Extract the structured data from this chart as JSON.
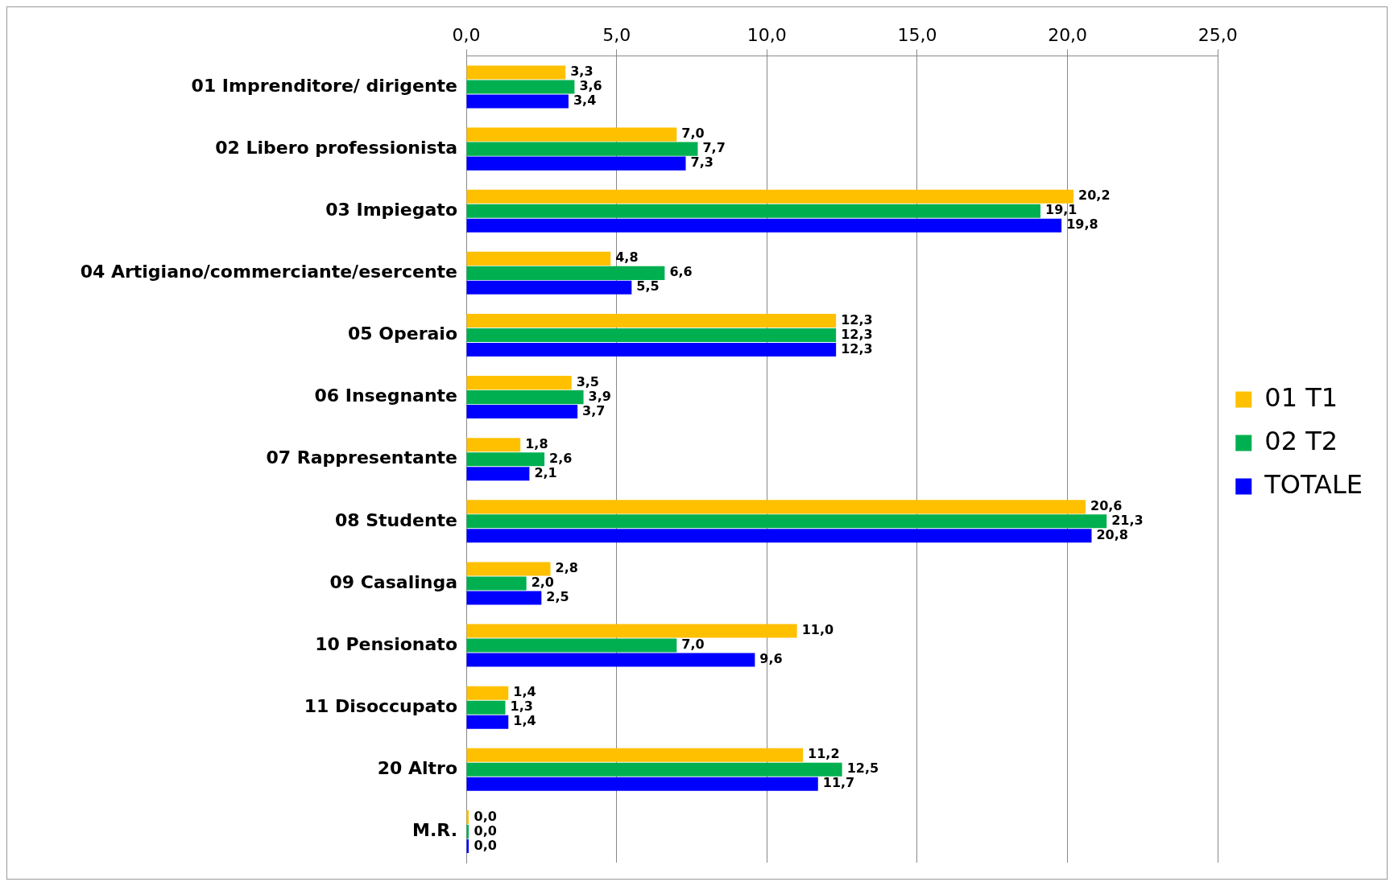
{
  "chart_data": {
    "type": "bar",
    "orientation": "horizontal",
    "categories": [
      "01 Imprenditore/ dirigente",
      "02 Libero professionista",
      "03 Impiegato",
      "04 Artigiano/commerciante/esercente",
      "05 Operaio",
      "06 Insegnante",
      "07 Rappresentante",
      "08 Studente",
      "09 Casalinga",
      "10 Pensionato",
      "11 Disoccupato",
      "20 Altro",
      "M.R."
    ],
    "series": [
      {
        "name": "01 T1",
        "color": "#ffc000",
        "values": [
          3.3,
          7.0,
          20.2,
          4.8,
          12.3,
          3.5,
          1.8,
          20.6,
          2.8,
          11.0,
          1.4,
          11.2,
          0.0
        ],
        "value_labels": [
          "3,3",
          "7,0",
          "20,2",
          "4,8",
          "12,3",
          "3,5",
          "1,8",
          "20,6",
          "2,8",
          "11,0",
          "1,4",
          "11,2",
          "0,0"
        ]
      },
      {
        "name": "02 T2",
        "color": "#00b050",
        "values": [
          3.6,
          7.7,
          19.1,
          6.6,
          12.3,
          3.9,
          2.6,
          21.3,
          2.0,
          7.0,
          1.3,
          12.5,
          0.0
        ],
        "value_labels": [
          "3,6",
          "7,7",
          "19,1",
          "6,6",
          "12,3",
          "3,9",
          "2,6",
          "21,3",
          "2,0",
          "7,0",
          "1,3",
          "12,5",
          "0,0"
        ]
      },
      {
        "name": "TOTALE",
        "color": "#0000ff",
        "values": [
          3.4,
          7.3,
          19.8,
          5.5,
          12.3,
          3.7,
          2.1,
          20.8,
          2.5,
          9.6,
          1.4,
          11.7,
          0.0
        ],
        "value_labels": [
          "3,4",
          "7,3",
          "19,8",
          "5,5",
          "12,3",
          "3,7",
          "2,1",
          "20,8",
          "2,5",
          "9,6",
          "1,4",
          "11,7",
          "0,0"
        ]
      }
    ],
    "xlim": [
      0,
      25
    ],
    "xticks": [
      {
        "value": 0,
        "label": "0,0"
      },
      {
        "value": 5,
        "label": "5,0"
      },
      {
        "value": 10,
        "label": "10,0"
      },
      {
        "value": 15,
        "label": "15,0"
      },
      {
        "value": 20,
        "label": "20,0"
      },
      {
        "value": 25,
        "label": "25,0"
      }
    ],
    "grid": "x",
    "legend": "right"
  }
}
